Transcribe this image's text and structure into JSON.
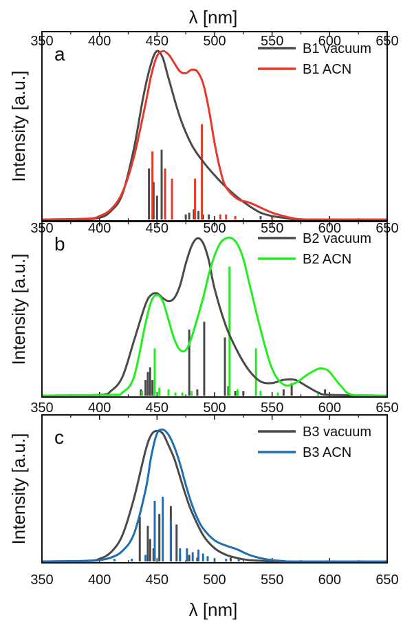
{
  "figure": {
    "top_xlabel": "λ [nm]",
    "bottom_xlabel": "λ [nm]"
  },
  "chart_data": [
    {
      "type": "line",
      "panel_letter": "a",
      "ylabel": "Intensity [a.u.]",
      "xlim": [
        350,
        650
      ],
      "xticks": [
        350,
        400,
        450,
        500,
        550,
        600,
        650
      ],
      "ylim": [
        0,
        1.08
      ],
      "grid": false,
      "legend_position": "top-right",
      "series": [
        {
          "name": "B1 vacuum",
          "color": "#4a4a4a",
          "x": [
            350,
            380,
            400,
            410,
            420,
            430,
            438,
            445,
            450,
            455,
            460,
            470,
            480,
            490,
            500,
            510,
            520,
            530,
            540,
            550,
            560,
            570,
            580,
            600,
            650
          ],
          "y": [
            0,
            0,
            0.01,
            0.05,
            0.15,
            0.42,
            0.72,
            0.92,
            0.99,
            0.95,
            0.83,
            0.6,
            0.44,
            0.34,
            0.26,
            0.19,
            0.13,
            0.08,
            0.04,
            0.02,
            0.01,
            0,
            0,
            0,
            0
          ]
        },
        {
          "name": "B1 ACN",
          "color": "#e5392b",
          "x": [
            350,
            390,
            400,
            410,
            420,
            430,
            440,
            445,
            450,
            455,
            460,
            465,
            470,
            475,
            480,
            485,
            490,
            495,
            500,
            505,
            510,
            520,
            530,
            540,
            550,
            560,
            570,
            580,
            600,
            650
          ],
          "y": [
            0,
            0.005,
            0.02,
            0.06,
            0.16,
            0.37,
            0.68,
            0.85,
            0.96,
            0.99,
            0.97,
            0.92,
            0.87,
            0.86,
            0.88,
            0.87,
            0.8,
            0.65,
            0.45,
            0.29,
            0.19,
            0.12,
            0.1,
            0.07,
            0.04,
            0.02,
            0.005,
            0,
            0,
            0
          ]
        }
      ],
      "sticks": [
        {
          "name": "B1 vacuum",
          "color": "#4a4a4a",
          "x": [
            443,
            447,
            450,
            454,
            475,
            478,
            482,
            486,
            490,
            495,
            540
          ],
          "y": [
            0.3,
            0.22,
            0.14,
            0.41,
            0.03,
            0.04,
            0.06,
            0.05,
            0.03,
            0.03,
            0.02
          ]
        },
        {
          "name": "B1 ACN",
          "color": "#e5392b",
          "x": [
            446,
            457,
            463,
            483,
            489,
            505,
            510,
            518,
            550
          ],
          "y": [
            0.4,
            0.3,
            0.24,
            0.24,
            0.56,
            0.03,
            0.03,
            0.02,
            0.02
          ]
        }
      ]
    },
    {
      "type": "line",
      "panel_letter": "b",
      "ylabel": "Intensity [a.u.]",
      "xlim": [
        350,
        650
      ],
      "xticks": [
        350,
        400,
        450,
        500,
        550,
        600,
        650
      ],
      "ylim": [
        0,
        1.08
      ],
      "grid": false,
      "legend_position": "top-right",
      "series": [
        {
          "name": "B2 vacuum",
          "color": "#4a4a4a",
          "x": [
            350,
            400,
            410,
            420,
            430,
            440,
            445,
            450,
            455,
            460,
            465,
            470,
            475,
            480,
            485,
            490,
            495,
            500,
            510,
            520,
            530,
            540,
            550,
            560,
            570,
            580,
            590,
            600,
            650
          ],
          "y": [
            0,
            0.005,
            0.03,
            0.12,
            0.35,
            0.58,
            0.64,
            0.65,
            0.62,
            0.6,
            0.62,
            0.7,
            0.84,
            0.95,
            1.0,
            0.97,
            0.86,
            0.68,
            0.44,
            0.28,
            0.16,
            0.09,
            0.08,
            0.1,
            0.1,
            0.06,
            0.02,
            0.005,
            0
          ]
        },
        {
          "name": "B2 ACN",
          "color": "#22ee22",
          "x": [
            350,
            410,
            420,
            430,
            440,
            445,
            450,
            455,
            460,
            465,
            470,
            475,
            480,
            490,
            495,
            500,
            505,
            510,
            515,
            520,
            525,
            530,
            540,
            550,
            560,
            570,
            580,
            590,
            595,
            600,
            610,
            620,
            650
          ],
          "y": [
            0,
            0.005,
            0.02,
            0.12,
            0.46,
            0.6,
            0.64,
            0.6,
            0.48,
            0.36,
            0.29,
            0.29,
            0.37,
            0.62,
            0.77,
            0.89,
            0.97,
            1.0,
            1.0,
            0.96,
            0.87,
            0.72,
            0.42,
            0.17,
            0.07,
            0.08,
            0.13,
            0.17,
            0.17,
            0.15,
            0.06,
            0.005,
            0
          ]
        }
      ],
      "sticks": [
        {
          "name": "B2 vacuum",
          "color": "#4a4a4a",
          "x": [
            436,
            440,
            442,
            444,
            446,
            478,
            485,
            491,
            509,
            512,
            518,
            525,
            560,
            567,
            596
          ],
          "y": [
            0.04,
            0.1,
            0.15,
            0.18,
            0.1,
            0.42,
            0.04,
            0.47,
            0.37,
            0.06,
            0.03,
            0.03,
            0.04,
            0.08,
            0.04
          ]
        },
        {
          "name": "B2 ACN",
          "color": "#22ee22",
          "x": [
            437,
            448,
            452,
            460,
            466,
            472,
            480,
            513,
            520,
            536,
            540,
            555,
            590
          ],
          "y": [
            0.03,
            0.3,
            0.05,
            0.04,
            0.02,
            0.02,
            0.03,
            0.82,
            0.04,
            0.3,
            0.03,
            0.02,
            0.02
          ]
        }
      ]
    },
    {
      "type": "line",
      "panel_letter": "c",
      "ylabel": "Intensity [a.u.]",
      "xlim": [
        350,
        650
      ],
      "xticks": [
        350,
        400,
        450,
        500,
        550,
        600,
        650
      ],
      "ylim": [
        0,
        1.08
      ],
      "grid": false,
      "legend_position": "top-right",
      "series": [
        {
          "name": "B3 vacuum",
          "color": "#4a4a4a",
          "x": [
            350,
            390,
            400,
            410,
            420,
            430,
            440,
            445,
            450,
            455,
            460,
            465,
            470,
            475,
            480,
            490,
            500,
            510,
            520,
            530,
            540,
            550,
            560,
            650
          ],
          "y": [
            0,
            0.005,
            0.02,
            0.07,
            0.2,
            0.48,
            0.84,
            0.96,
            0.99,
            0.97,
            0.88,
            0.78,
            0.64,
            0.5,
            0.38,
            0.2,
            0.1,
            0.05,
            0.025,
            0.01,
            0.005,
            0,
            0,
            0
          ]
        },
        {
          "name": "B3 ACN",
          "color": "#1f6fb5",
          "x": [
            350,
            390,
            400,
            410,
            420,
            430,
            440,
            445,
            450,
            455,
            460,
            465,
            470,
            475,
            480,
            485,
            490,
            500,
            510,
            520,
            530,
            540,
            550,
            560,
            570,
            650
          ],
          "y": [
            0,
            0.003,
            0.01,
            0.03,
            0.08,
            0.21,
            0.54,
            0.8,
            0.97,
            1.0,
            0.96,
            0.87,
            0.74,
            0.58,
            0.44,
            0.33,
            0.25,
            0.16,
            0.12,
            0.09,
            0.05,
            0.025,
            0.01,
            0.003,
            0,
            0
          ]
        }
      ],
      "sticks": [
        {
          "name": "B3 vacuum",
          "color": "#4a4a4a",
          "x": [
            435,
            442,
            444,
            447,
            452,
            462,
            467,
            470,
            478,
            485,
            514
          ],
          "y": [
            0.34,
            0.27,
            0.17,
            0.1,
            0.36,
            0.42,
            0.28,
            0.05,
            0.05,
            0.03,
            0.03
          ]
        },
        {
          "name": "B3 ACN",
          "color": "#1f6fb5",
          "x": [
            413,
            428,
            440,
            448,
            455,
            462,
            470,
            476,
            481,
            486,
            490,
            494,
            500,
            510,
            521
          ],
          "y": [
            0.02,
            0.02,
            0.05,
            0.46,
            0.49,
            0.32,
            0.1,
            0.1,
            0.07,
            0.09,
            0.06,
            0.04,
            0.02,
            0.02,
            0.02
          ]
        }
      ]
    }
  ]
}
